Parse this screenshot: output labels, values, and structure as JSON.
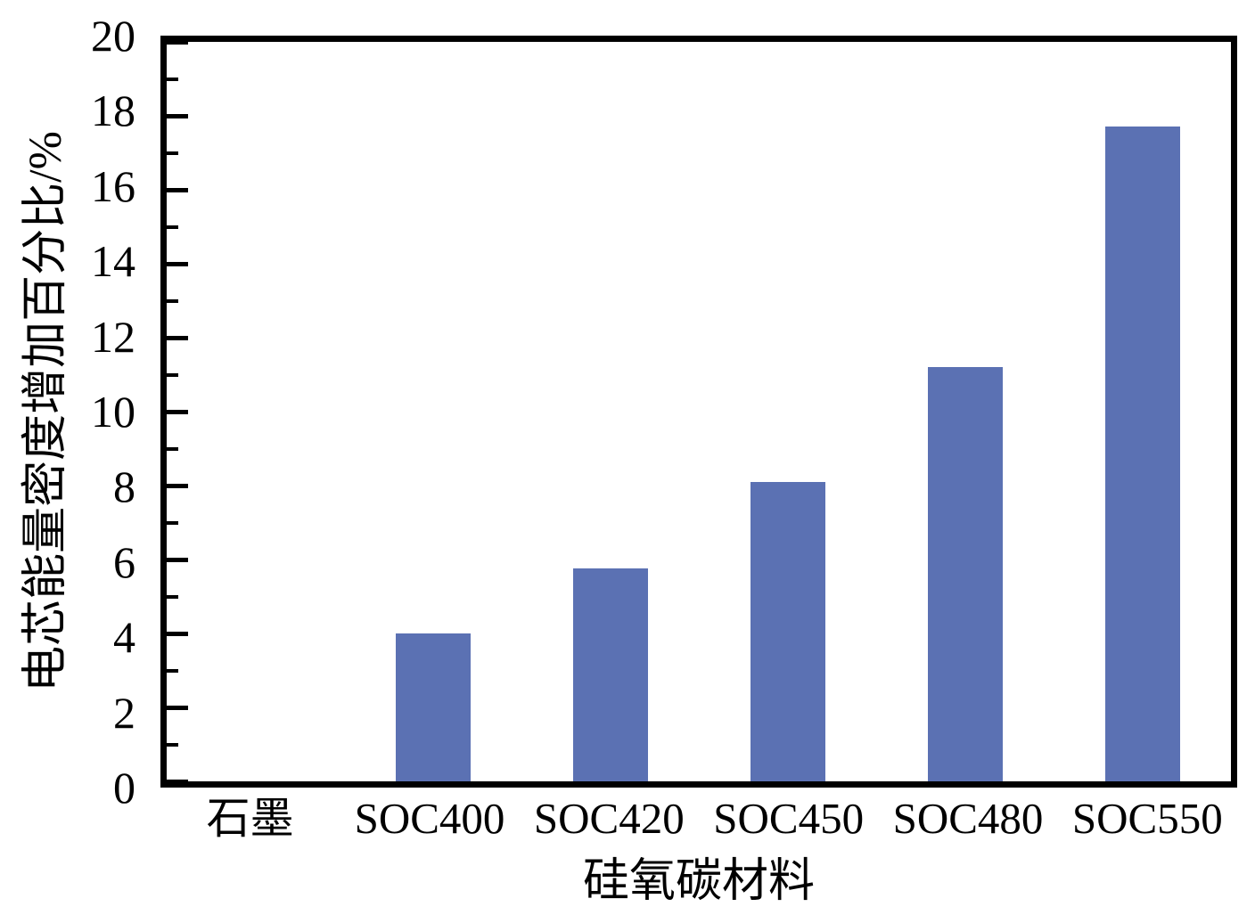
{
  "chart_data": {
    "type": "bar",
    "title": "",
    "categories": [
      "石墨",
      "SOC400",
      "SOC420",
      "SOC450",
      "SOC480",
      "SOC550"
    ],
    "values": [
      0,
      4.0,
      5.75,
      8.1,
      11.2,
      17.7
    ],
    "xlabel": "硅氧碳材料",
    "ylabel": "电芯能量密度增加百分比/%",
    "ylim": [
      0,
      20
    ],
    "ytick_step": 2,
    "yminor_step": 1,
    "bar_color": "#5b71b3",
    "axis_color": "#000000",
    "grid": false,
    "legend": false
  }
}
